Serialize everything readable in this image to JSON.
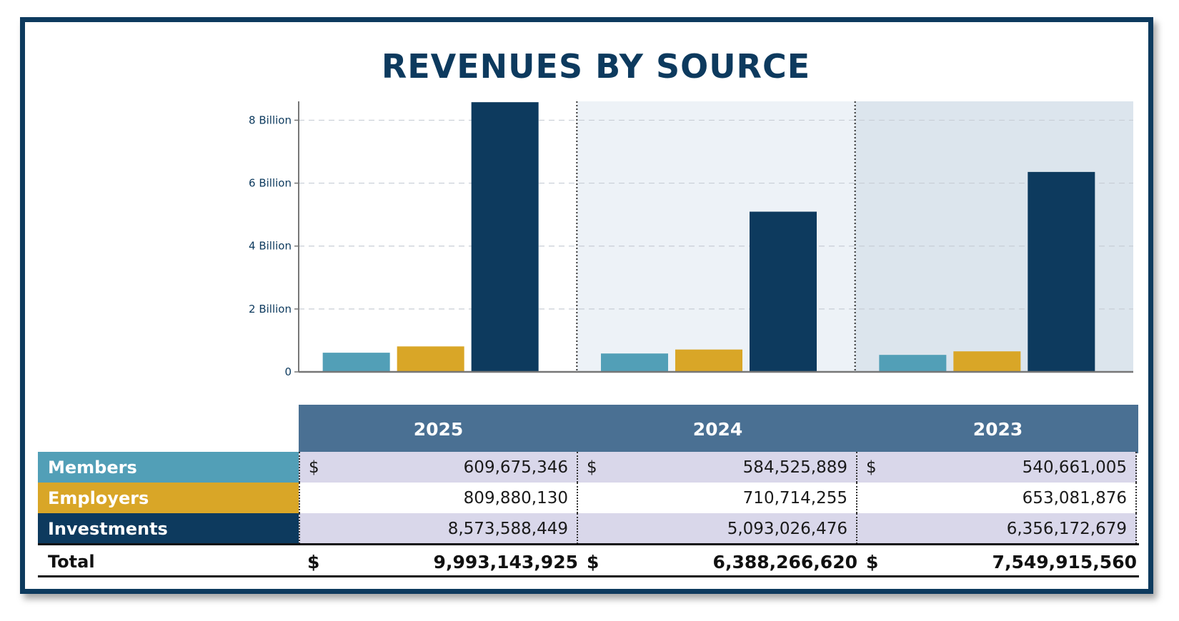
{
  "chart_data": {
    "type": "bar",
    "title": "REVENUES BY SOURCE",
    "categories": [
      "2025",
      "2024",
      "2023"
    ],
    "series": [
      {
        "name": "Members",
        "color": "#529fb7",
        "values": [
          609675346,
          584525889,
          540661005
        ]
      },
      {
        "name": "Employers",
        "color": "#d9a627",
        "values": [
          809880130,
          710714255,
          653081876
        ]
      },
      {
        "name": "Investments",
        "color": "#0d3a5e",
        "values": [
          8573588449,
          5093026476,
          6356172679
        ]
      }
    ],
    "ylim": [
      0,
      8600000000
    ],
    "yticks": [
      {
        "value": 0,
        "label": "0"
      },
      {
        "value": 2000000000,
        "label": "2 Billion"
      },
      {
        "value": 4000000000,
        "label": "4 Billion"
      },
      {
        "value": 6000000000,
        "label": "6 Billion"
      },
      {
        "value": 8000000000,
        "label": "8 Billion"
      }
    ],
    "grid": true,
    "panel_backgrounds": [
      "#ffffff",
      "#edf2f7",
      "#dce5ed"
    ]
  },
  "table": {
    "headers": [
      "2025",
      "2024",
      "2023"
    ],
    "currency_symbol": "$",
    "rows": [
      {
        "label": "Members",
        "color": "#529fb7",
        "label_color": "#ffffff",
        "row_bg": "#d9d7ea",
        "show_currency": true,
        "values": [
          "609,675,346",
          "584,525,889",
          "540,661,005"
        ]
      },
      {
        "label": "Employers",
        "color": "#d9a627",
        "label_color": "#ffffff",
        "row_bg": "#ffffff",
        "show_currency": false,
        "values": [
          "809,880,130",
          "710,714,255",
          "653,081,876"
        ]
      },
      {
        "label": "Investments",
        "color": "#0d3a5e",
        "label_color": "#ffffff",
        "row_bg": "#d9d7ea",
        "show_currency": false,
        "values": [
          "8,573,588,449",
          "5,093,026,476",
          "6,356,172,679"
        ]
      }
    ],
    "total": {
      "label": "Total",
      "values": [
        "9,993,143,925",
        "6,388,266,620",
        "7,549,915,560"
      ]
    }
  }
}
